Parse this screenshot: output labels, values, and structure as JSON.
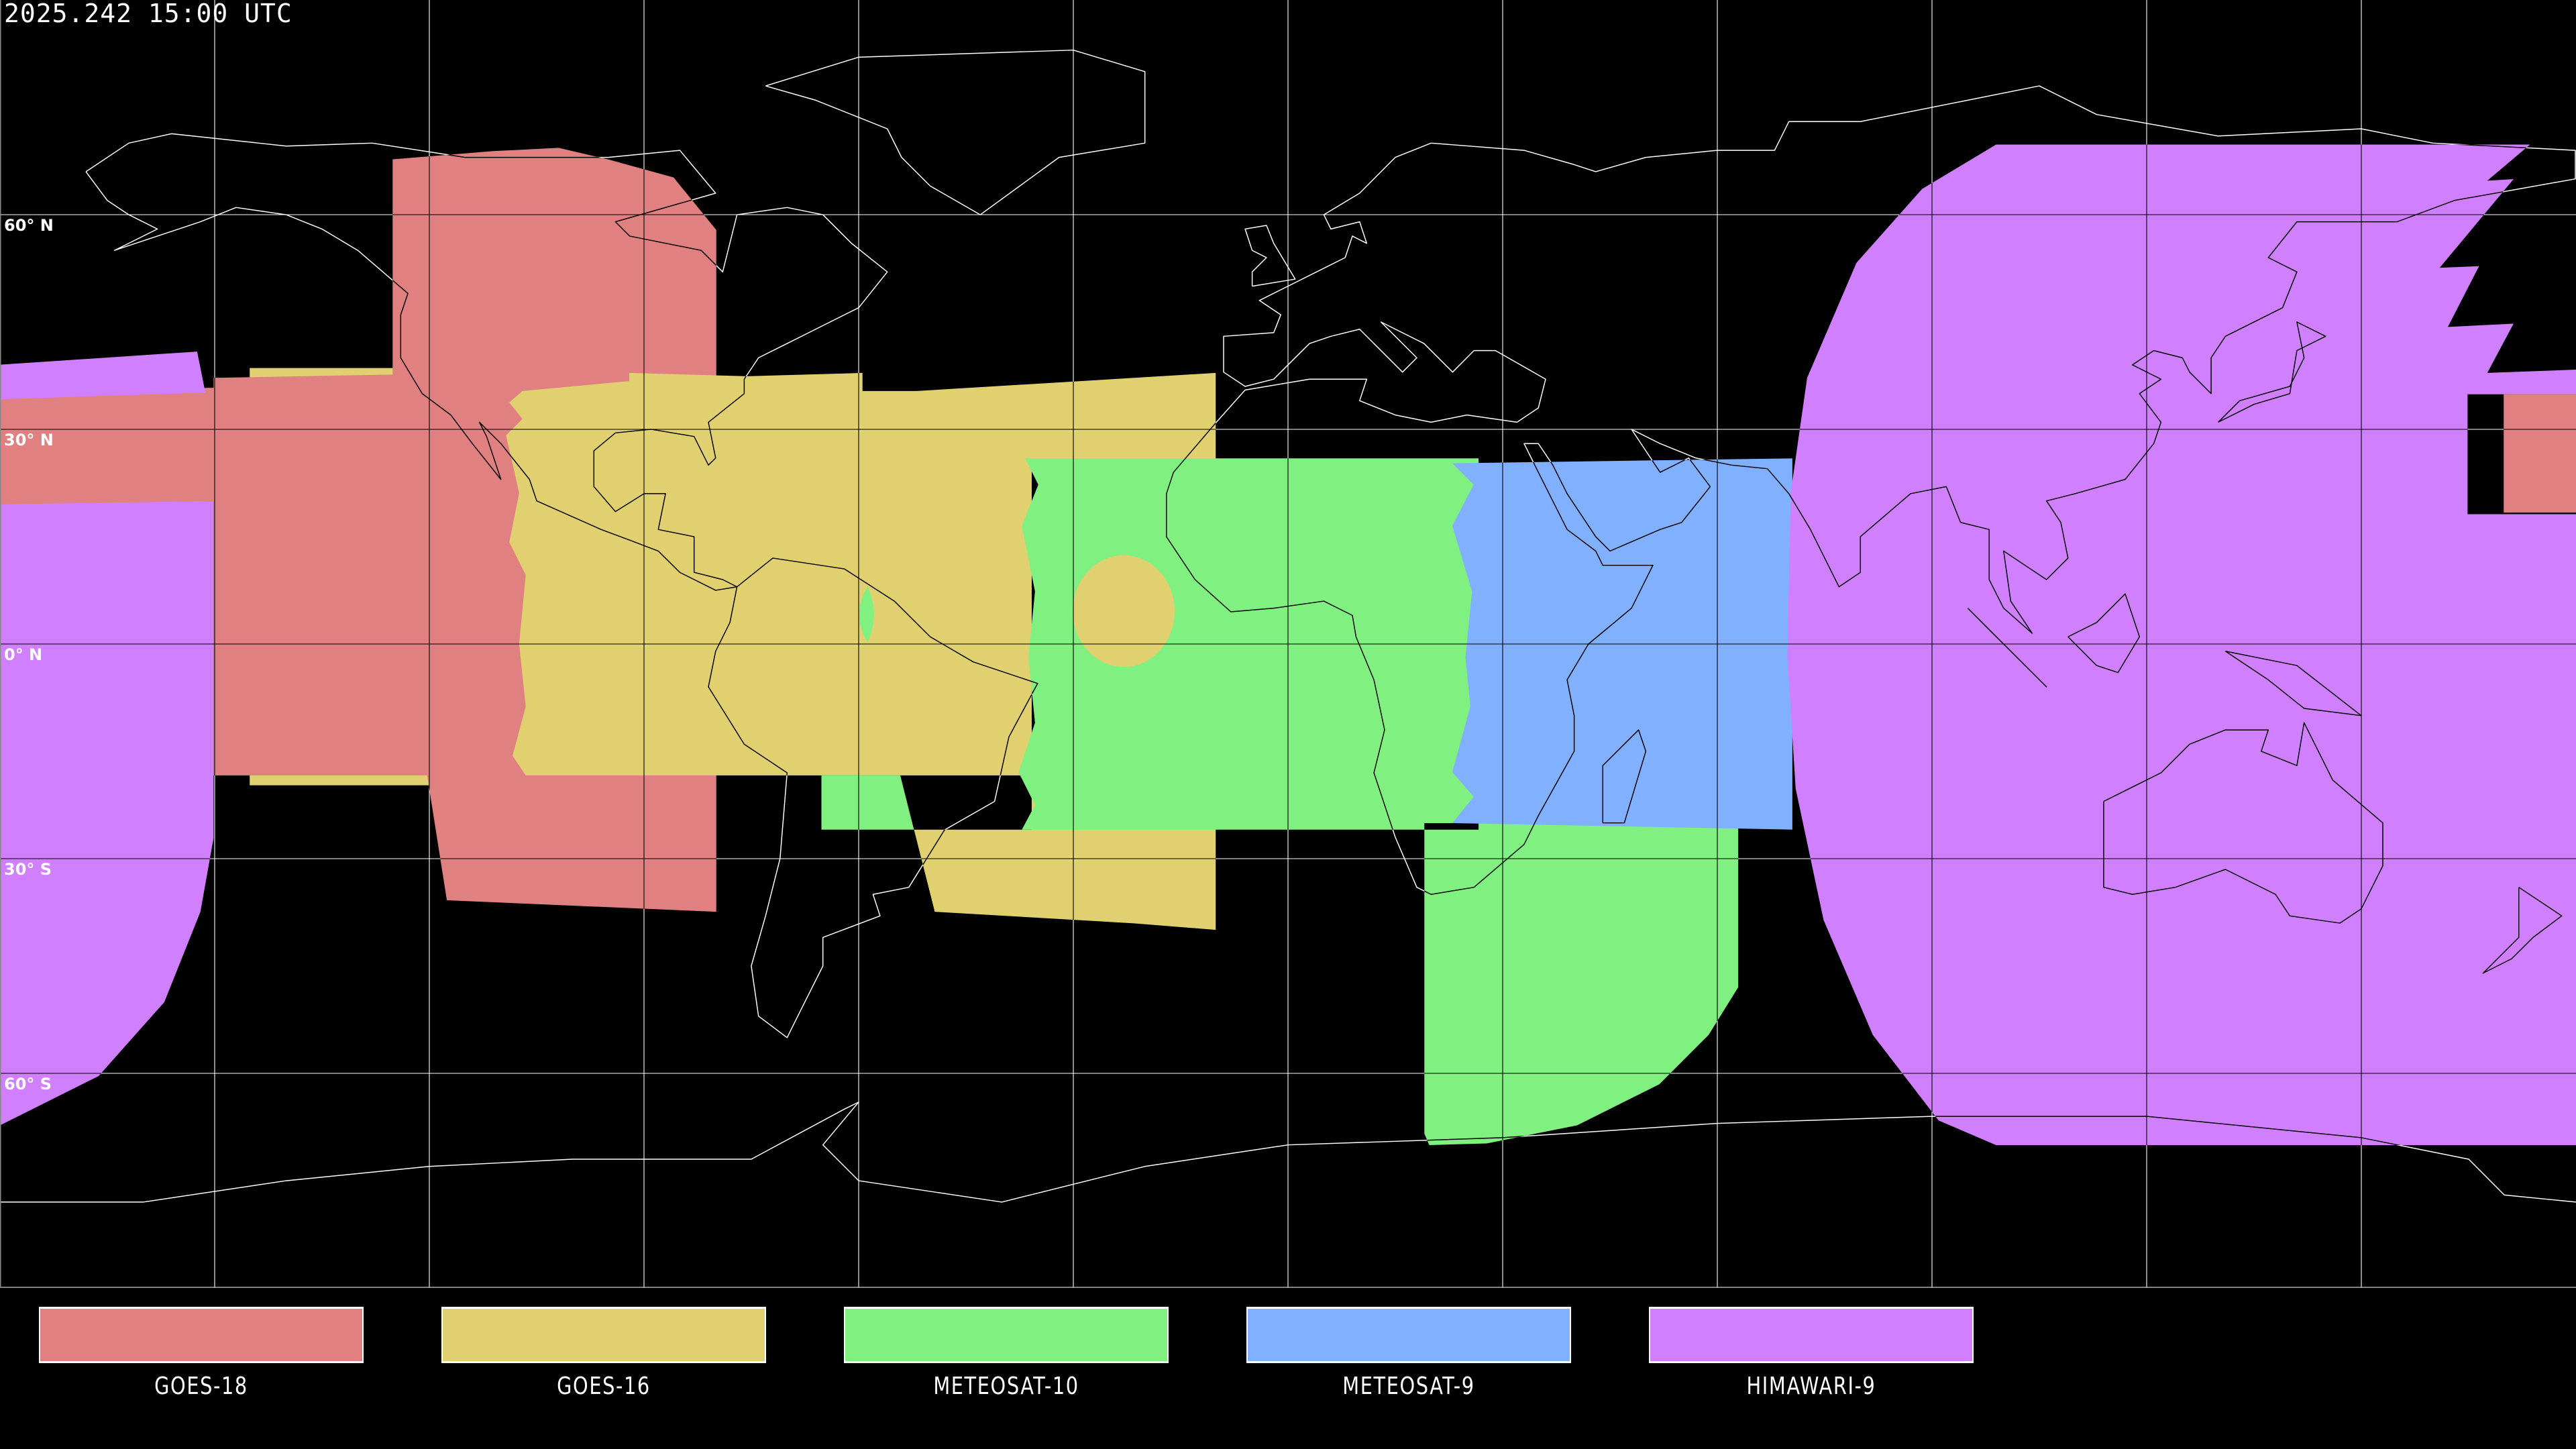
{
  "header": {
    "title": "2025.242 15:00 UTC"
  },
  "map": {
    "projection": "equirectangular",
    "grid_spacing_degrees": 30,
    "latitude_labels": [
      "60° N",
      "30° N",
      "0° N",
      "30° S",
      "60° S"
    ],
    "grid_color_on_background": "#ffffff",
    "grid_color_on_coverage": "#000000",
    "coastline_color": "#ffffff"
  },
  "legend": {
    "items": [
      {
        "label": "GOES-18",
        "color": "#e08080"
      },
      {
        "label": "GOES-16",
        "color": "#e0d070"
      },
      {
        "label": "METEOSAT-10",
        "color": "#80f080"
      },
      {
        "label": "METEOSAT-9",
        "color": "#80b0ff"
      },
      {
        "label": "HIMAWARI-9",
        "color": "#d080ff"
      }
    ]
  }
}
